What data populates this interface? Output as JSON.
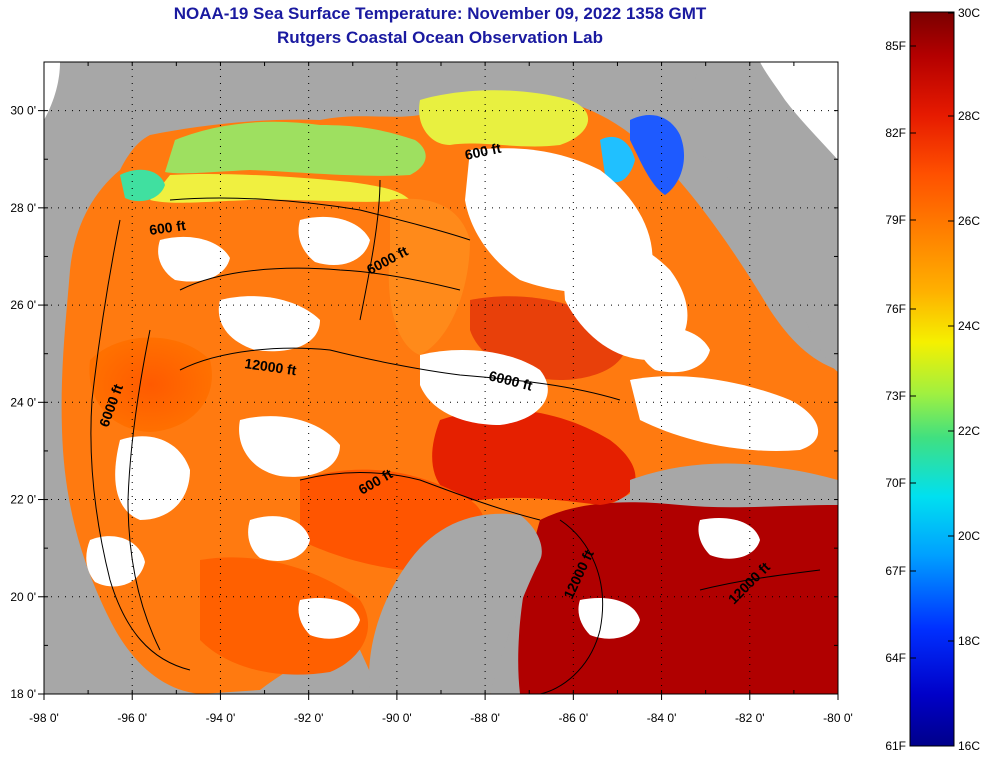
{
  "title": "NOAA-19 Sea Surface Temperature:  November 09, 2022 1358 GMT",
  "subtitle": "Rutgers Coastal Ocean Observation Lab",
  "map": {
    "lon_ticks": [
      "-98 0'",
      "-96 0'",
      "-94 0'",
      "-92 0'",
      "-90 0'",
      "-88 0'",
      "-86 0'",
      "-84 0'",
      "-82 0'",
      "-80 0'"
    ],
    "lat_ticks": [
      "30 0'",
      "28 0'",
      "26 0'",
      "24 0'",
      "22 0'",
      "20 0'",
      "18 0'"
    ],
    "lon_range": [
      -98,
      -80
    ],
    "lat_range": [
      18,
      31
    ],
    "contour_labels": [
      "600 ft",
      "600 ft",
      "6000 ft",
      "12000 ft",
      "6000 ft",
      "6000 ft",
      "600 ft",
      "12000 ft",
      "12000 ft"
    ]
  },
  "colorbar": {
    "fahrenheit_labels": [
      "85F",
      "82F",
      "79F",
      "76F",
      "73F",
      "70F",
      "67F",
      "64F",
      "61F"
    ],
    "celsius_labels": [
      "30C",
      "28C",
      "26C",
      "24C",
      "22C",
      "20C",
      "18C",
      "16C"
    ],
    "colors": {
      "dark_red": "#7a0000",
      "red": "#e61a00",
      "orange": "#ff8000",
      "yellow": "#f5f000",
      "green": "#40e080",
      "cyan": "#00e0f0",
      "blue": "#0060ff",
      "dark_blue": "#00008a"
    }
  },
  "colors": {
    "land": "#a7a7a7",
    "cloud": "#ffffff",
    "title": "#1a1aa0"
  }
}
